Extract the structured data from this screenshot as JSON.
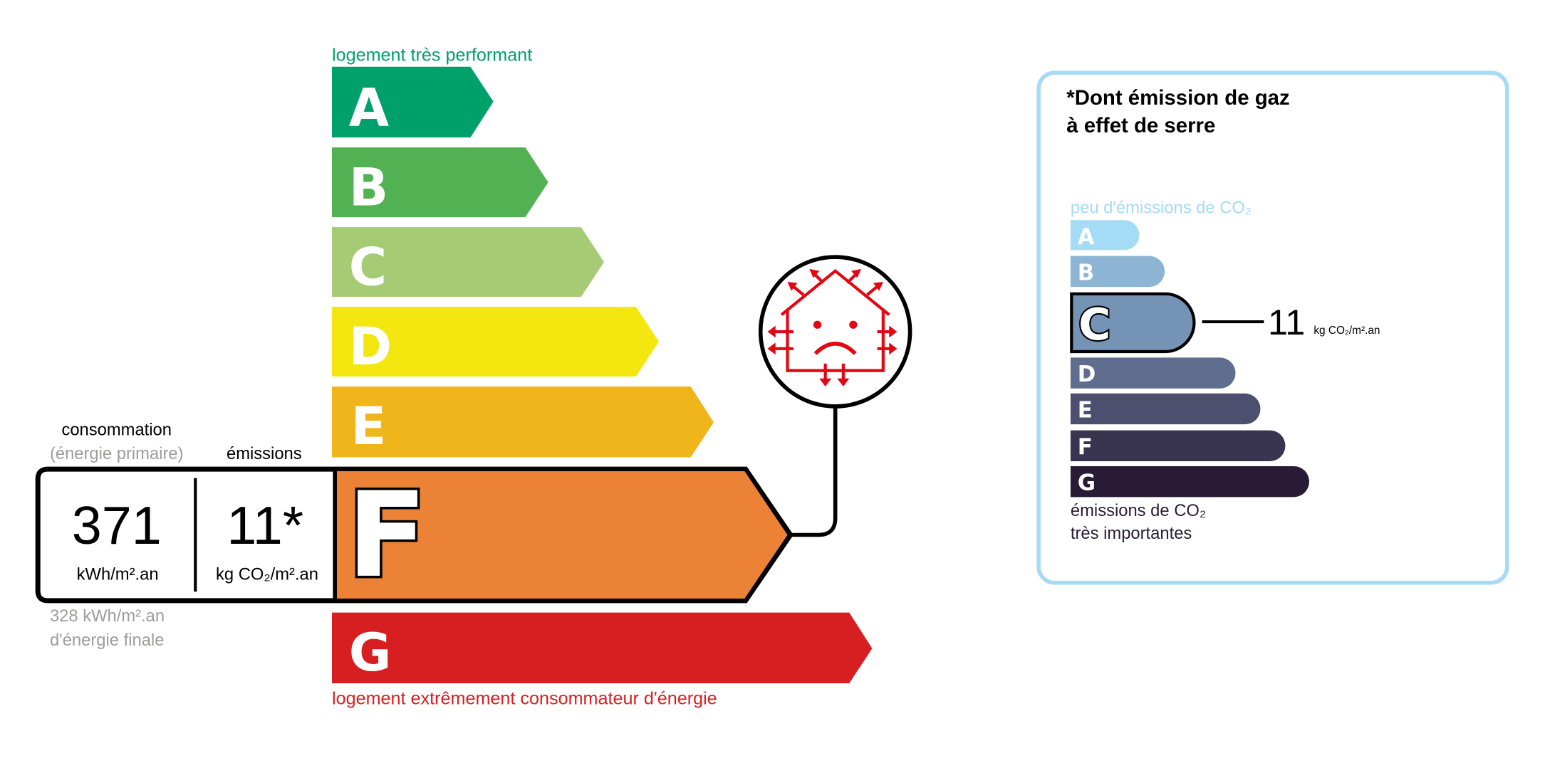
{
  "energy": {
    "top_label": "logement très performant",
    "bottom_label": "logement extrêmement consommateur d'énergie",
    "classes": [
      {
        "letter": "A",
        "color": "#00a06b"
      },
      {
        "letter": "B",
        "color": "#52b153"
      },
      {
        "letter": "C",
        "color": "#a5cc74"
      },
      {
        "letter": "D",
        "color": "#f4e70f"
      },
      {
        "letter": "E",
        "color": "#f0b51b"
      },
      {
        "letter": "F",
        "color": "#eb8235"
      },
      {
        "letter": "G",
        "color": "#d71f21"
      }
    ],
    "current_class": "F",
    "consumption_label": "consommation",
    "consumption_sublabel": "(énergie primaire)",
    "emissions_label": "émissions",
    "consumption_value": "371",
    "consumption_unit": "kWh/m².an",
    "emissions_value": "11*",
    "emissions_unit": "kg CO₂/m².an",
    "final_energy_line1": "328 kWh/m².an",
    "final_energy_line2": "d'énergie finale",
    "icon": "house-passoire-sad-face-icon",
    "icon_color": "#e30613"
  },
  "ges": {
    "title_line1": "*Dont émission de gaz",
    "title_line2": "à effet de serre",
    "top_label": "peu d'émissions de CO₂",
    "bottom_line1": "émissions de CO₂",
    "bottom_line2": "très importantes",
    "classes": [
      {
        "letter": "A",
        "color": "#a4dbf5"
      },
      {
        "letter": "B",
        "color": "#8cb4d3"
      },
      {
        "letter": "C",
        "color": "#7593b5"
      },
      {
        "letter": "D",
        "color": "#5f6d8e"
      },
      {
        "letter": "E",
        "color": "#4d4f6f"
      },
      {
        "letter": "F",
        "color": "#393551"
      },
      {
        "letter": "G",
        "color": "#291b35"
      }
    ],
    "current_class": "C",
    "value": "11",
    "unit": "kg CO₂/m².an",
    "border_color": "#a6daf5"
  }
}
